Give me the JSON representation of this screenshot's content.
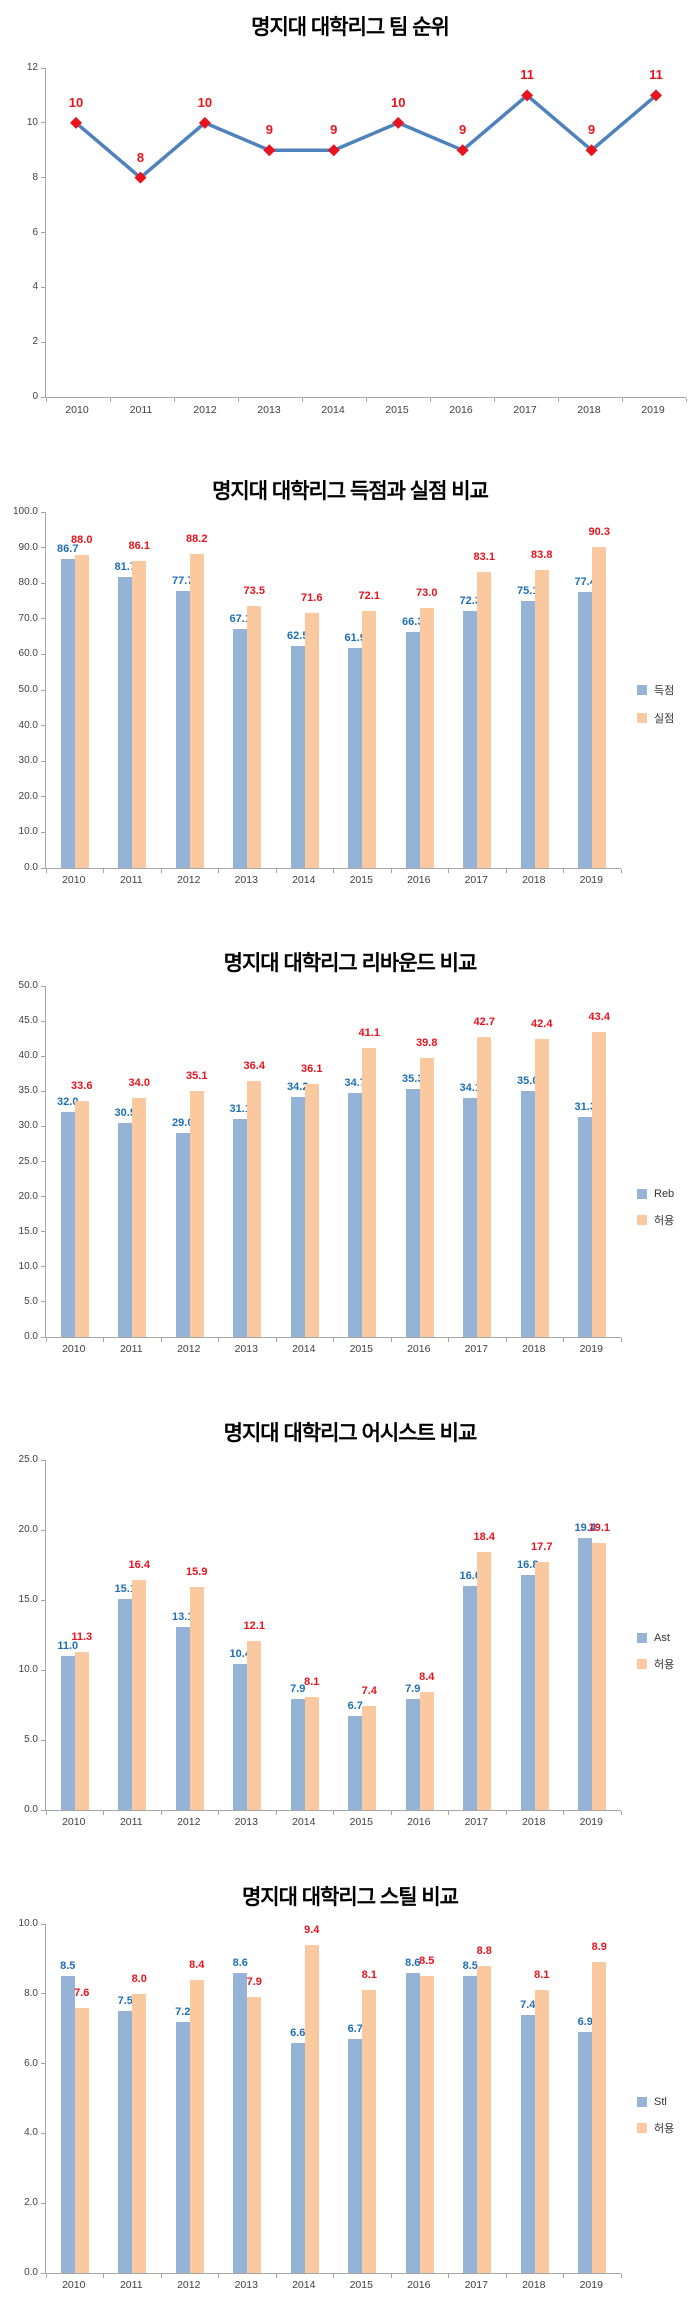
{
  "colors": {
    "background": "#FFFFFF",
    "bar_primary": "#95B3D7",
    "bar_secondary": "#FAC9A0",
    "label_primary": "#1F6FB8",
    "label_secondary": "#E8131D",
    "line": "#4F81BD",
    "marker": "#E8131D",
    "axis": "#A6A6A6",
    "tick_text": "#404040"
  },
  "chart_data": [
    {
      "type": "line",
      "title": "명지대 대학리그 팀 순위",
      "categories": [
        "2010",
        "2011",
        "2012",
        "2013",
        "2014",
        "2015",
        "2016",
        "2017",
        "2018",
        "2019"
      ],
      "series": [
        {
          "values": [
            10,
            8,
            10,
            9,
            9,
            10,
            9,
            11,
            9,
            11
          ],
          "color": "#4F81BD",
          "marker_color": "#E8131D",
          "label_color": "#E8131D"
        }
      ],
      "ylim": [
        0,
        12
      ],
      "ytick_step": 2,
      "yticks": [
        "0",
        "2",
        "4",
        "6",
        "8",
        "10",
        "12"
      ],
      "value_decimals": 0,
      "grid": false,
      "legend_position": "none"
    },
    {
      "type": "bar",
      "title": "명지대 대학리그 득점과 실점 비교",
      "categories": [
        "2010",
        "2011",
        "2012",
        "2013",
        "2014",
        "2015",
        "2016",
        "2017",
        "2018",
        "2019"
      ],
      "series": [
        {
          "name": "득점",
          "values": [
            86.7,
            81.7,
            77.7,
            67.1,
            62.5,
            61.9,
            66.3,
            72.3,
            75.1,
            77.4
          ],
          "color": "#95B3D7",
          "label_color": "#1F6FB8"
        },
        {
          "name": "실점",
          "values": [
            88.0,
            86.1,
            88.2,
            73.5,
            71.6,
            72.1,
            73.0,
            83.1,
            83.8,
            90.3
          ],
          "color": "#FAC9A0",
          "label_color": "#E8131D"
        }
      ],
      "ylim": [
        0,
        100
      ],
      "ytick_step": 10,
      "yticks": [
        "0.0",
        "10.0",
        "20.0",
        "30.0",
        "40.0",
        "50.0",
        "60.0",
        "70.0",
        "80.0",
        "90.0",
        "100.0"
      ],
      "value_decimals": 1,
      "grid": false,
      "legend_position": "right"
    },
    {
      "type": "bar",
      "title": "명지대 대학리그 리바운드 비교",
      "categories": [
        "2010",
        "2011",
        "2012",
        "2013",
        "2014",
        "2015",
        "2016",
        "2017",
        "2018",
        "2019"
      ],
      "series": [
        {
          "name": "Reb",
          "values": [
            32.0,
            30.5,
            29.0,
            31.1,
            34.2,
            34.7,
            35.3,
            34.1,
            35.0,
            31.3
          ],
          "color": "#95B3D7",
          "label_color": "#1F6FB8"
        },
        {
          "name": "허용",
          "values": [
            33.6,
            34.0,
            35.1,
            36.4,
            36.1,
            41.1,
            39.8,
            42.7,
            42.4,
            43.4
          ],
          "color": "#FAC9A0",
          "label_color": "#E8131D"
        }
      ],
      "ylim": [
        0,
        50
      ],
      "ytick_step": 5,
      "yticks": [
        "0.0",
        "5.0",
        "10.0",
        "15.0",
        "20.0",
        "25.0",
        "30.0",
        "35.0",
        "40.0",
        "45.0",
        "50.0"
      ],
      "value_decimals": 1,
      "grid": false,
      "legend_position": "right"
    },
    {
      "type": "bar",
      "title": "명지대 대학리그 어시스트 비교",
      "categories": [
        "2010",
        "2011",
        "2012",
        "2013",
        "2014",
        "2015",
        "2016",
        "2017",
        "2018",
        "2019"
      ],
      "series": [
        {
          "name": "Ast",
          "values": [
            11.0,
            15.1,
            13.1,
            10.4,
            7.9,
            6.7,
            7.9,
            16.0,
            16.8,
            19.4
          ],
          "color": "#95B3D7",
          "label_color": "#1F6FB8"
        },
        {
          "name": "허용",
          "values": [
            11.3,
            16.4,
            15.9,
            12.1,
            8.1,
            7.4,
            8.4,
            18.4,
            17.7,
            19.1
          ],
          "color": "#FAC9A0",
          "label_color": "#E8131D"
        }
      ],
      "ylim": [
        0,
        25
      ],
      "ytick_step": 5,
      "yticks": [
        "0.0",
        "5.0",
        "10.0",
        "15.0",
        "20.0",
        "25.0"
      ],
      "value_decimals": 1,
      "grid": false,
      "legend_position": "right"
    },
    {
      "type": "bar",
      "title": "명지대 대학리그 스틸 비교",
      "categories": [
        "2010",
        "2011",
        "2012",
        "2013",
        "2014",
        "2015",
        "2016",
        "2017",
        "2018",
        "2019"
      ],
      "series": [
        {
          "name": "Stl",
          "values": [
            8.5,
            7.5,
            7.2,
            8.6,
            6.6,
            6.7,
            8.6,
            8.5,
            7.4,
            6.9
          ],
          "color": "#95B3D7",
          "label_color": "#1F6FB8"
        },
        {
          "name": "허용",
          "values": [
            7.6,
            8.0,
            8.4,
            7.9,
            9.4,
            8.1,
            8.5,
            8.8,
            8.1,
            8.9
          ],
          "color": "#FAC9A0",
          "label_color": "#E8131D"
        }
      ],
      "ylim": [
        0,
        10
      ],
      "ytick_step": 2,
      "yticks": [
        "0.0",
        "2.0",
        "4.0",
        "6.0",
        "8.0",
        "10.0"
      ],
      "value_decimals": 1,
      "grid": false,
      "legend_position": "right"
    }
  ]
}
